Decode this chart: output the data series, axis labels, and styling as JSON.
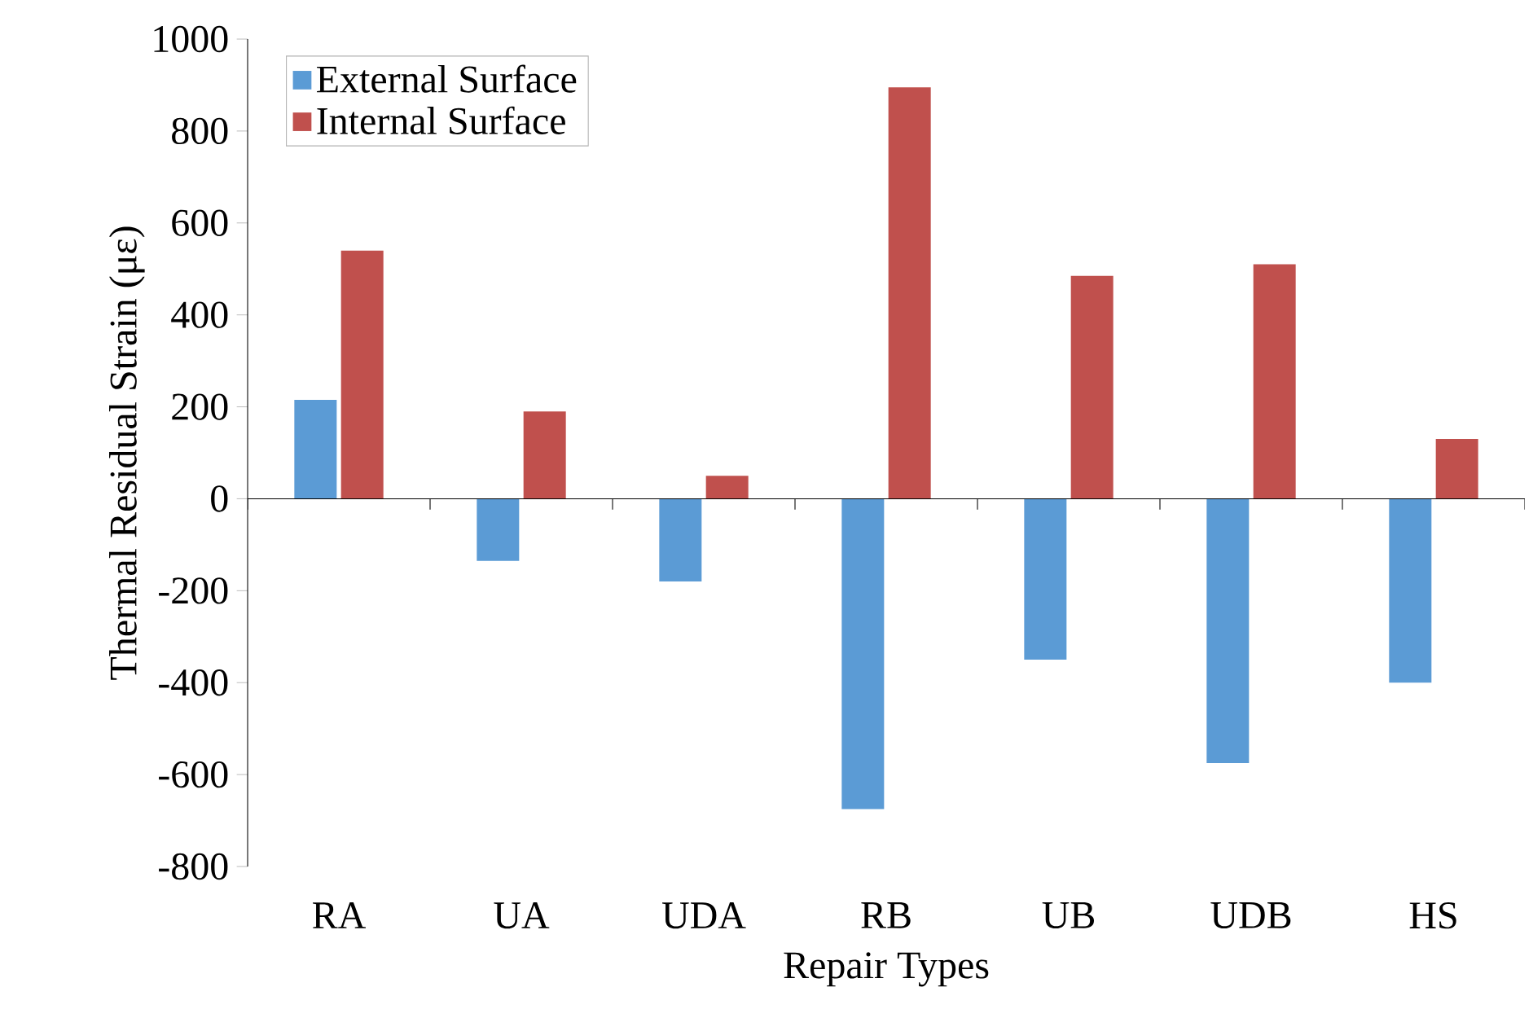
{
  "chart_data": {
    "type": "bar",
    "xlabel": "Repair Types",
    "ylabel": "Thermal Residual Strain (με)",
    "categories": [
      "RA",
      "UA",
      "UDA",
      "RB",
      "UB",
      "UDB",
      "HS"
    ],
    "series": [
      {
        "name": "External Surface",
        "color": "#5b9bd5",
        "values": [
          215,
          -135,
          -180,
          -675,
          -350,
          -575,
          -400
        ]
      },
      {
        "name": "Internal Surface",
        "color": "#c0504d",
        "values": [
          540,
          190,
          50,
          895,
          485,
          510,
          130
        ]
      }
    ],
    "ylim": [
      -800,
      1000
    ],
    "yticks": [
      -800,
      -600,
      -400,
      -200,
      0,
      200,
      400,
      600,
      800,
      1000
    ],
    "legend": "top left"
  }
}
